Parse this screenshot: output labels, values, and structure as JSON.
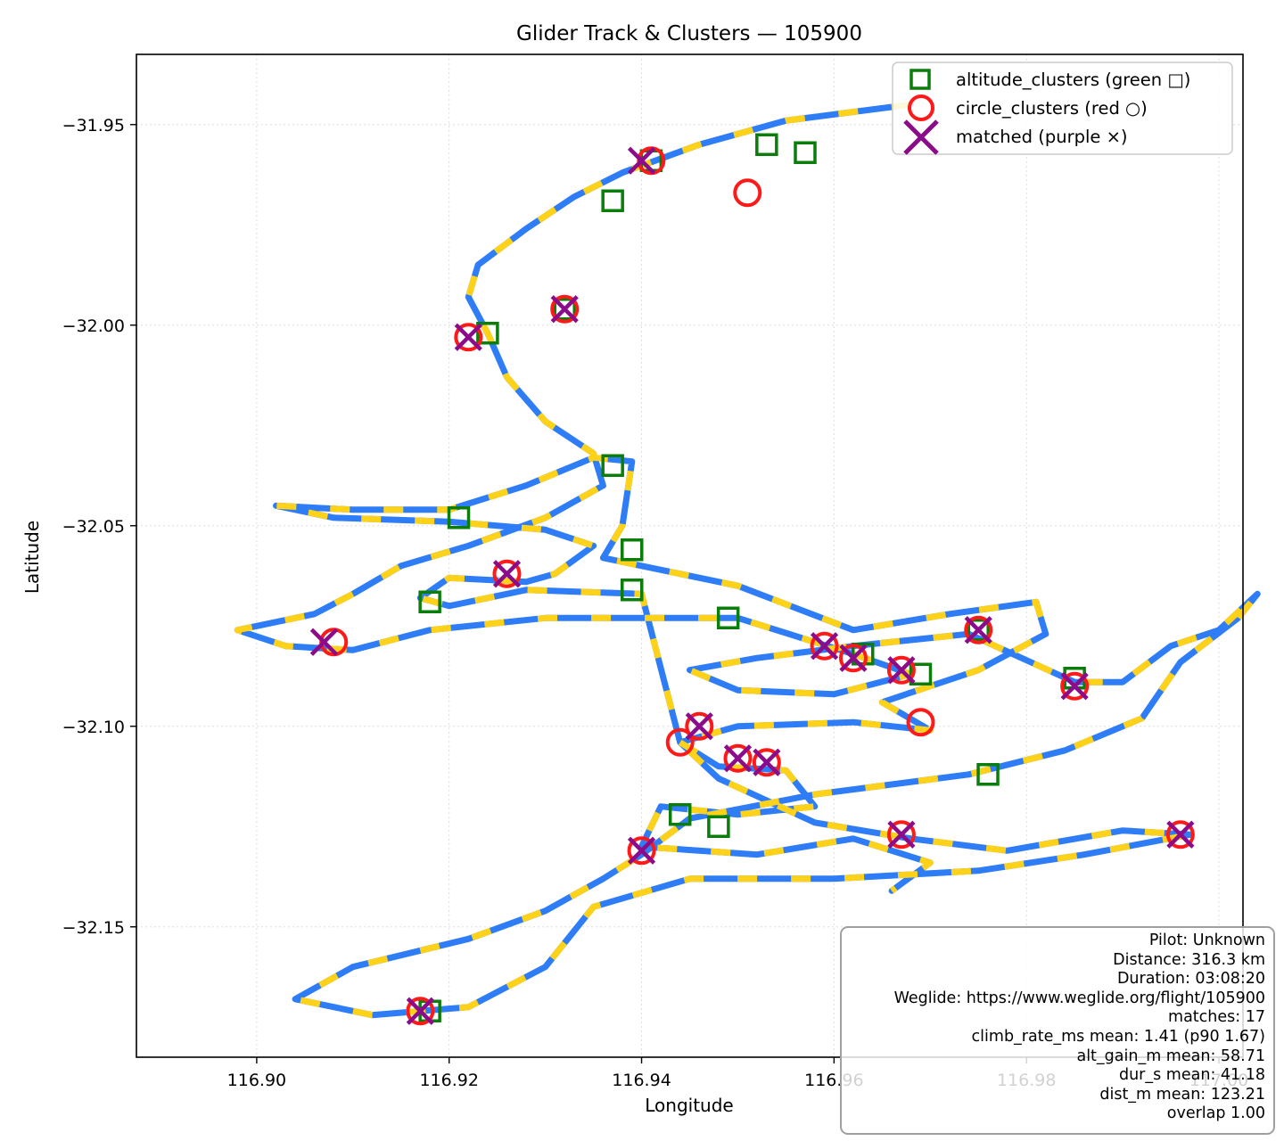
{
  "chart_data": {
    "type": "scatter",
    "title": "Glider Track & Clusters — 105900",
    "xlabel": "Longitude",
    "ylabel": "Latitude",
    "xlim": [
      116.8875,
      117.0025
    ],
    "ylim": [
      -32.1825,
      -31.9325
    ],
    "x_ticks": [
      116.9,
      116.92,
      116.94,
      116.96,
      116.98,
      117.0
    ],
    "x_tick_labels": [
      "116.90",
      "116.92",
      "116.94",
      "116.96",
      "116.98",
      "117.00"
    ],
    "y_ticks": [
      -31.95,
      -32.0,
      -32.05,
      -32.1,
      -32.15
    ],
    "y_tick_labels": [
      "−31.95",
      "−32.00",
      "−32.05",
      "−32.10",
      "−32.15"
    ],
    "grid": true,
    "legend_position": "upper-right",
    "track": {
      "color_cruise": "#2f7df6",
      "color_climb": "#ffd21a",
      "points": [
        [
          116.968,
          -31.945
        ],
        [
          116.955,
          -31.949
        ],
        [
          116.946,
          -31.955
        ],
        [
          116.938,
          -31.962
        ],
        [
          116.933,
          -31.968
        ],
        [
          116.928,
          -31.976
        ],
        [
          116.923,
          -31.985
        ],
        [
          116.922,
          -31.993
        ],
        [
          116.924,
          -32.002
        ],
        [
          116.926,
          -32.013
        ],
        [
          116.93,
          -32.024
        ],
        [
          116.935,
          -32.032
        ],
        [
          116.936,
          -32.04
        ],
        [
          116.93,
          -32.048
        ],
        [
          116.922,
          -32.055
        ],
        [
          116.915,
          -32.06
        ],
        [
          116.91,
          -32.067
        ],
        [
          116.906,
          -32.072
        ],
        [
          116.898,
          -32.076
        ],
        [
          116.903,
          -32.08
        ],
        [
          116.91,
          -32.081
        ],
        [
          116.918,
          -32.076
        ],
        [
          116.93,
          -32.073
        ],
        [
          116.95,
          -32.073
        ],
        [
          116.962,
          -32.082
        ],
        [
          116.968,
          -32.087
        ],
        [
          116.96,
          -32.092
        ],
        [
          116.95,
          -32.091
        ],
        [
          116.945,
          -32.086
        ],
        [
          116.952,
          -32.083
        ],
        [
          116.962,
          -32.08
        ],
        [
          116.974,
          -32.077
        ],
        [
          116.985,
          -32.089
        ],
        [
          116.99,
          -32.089
        ],
        [
          116.995,
          -32.08
        ],
        [
          117.0,
          -32.076
        ],
        [
          117.004,
          -32.067
        ],
        [
          117.002,
          -32.073
        ],
        [
          116.996,
          -32.084
        ],
        [
          116.992,
          -32.098
        ],
        [
          116.984,
          -32.106
        ],
        [
          116.974,
          -32.112
        ],
        [
          116.958,
          -32.117
        ],
        [
          116.945,
          -32.123
        ],
        [
          116.94,
          -32.132
        ],
        [
          116.936,
          -32.138
        ],
        [
          116.93,
          -32.146
        ],
        [
          116.922,
          -32.153
        ],
        [
          116.91,
          -32.16
        ],
        [
          116.904,
          -32.168
        ],
        [
          116.912,
          -32.172
        ],
        [
          116.922,
          -32.17
        ],
        [
          116.93,
          -32.16
        ],
        [
          116.935,
          -32.145
        ],
        [
          116.945,
          -32.138
        ],
        [
          116.96,
          -32.138
        ],
        [
          116.975,
          -32.136
        ],
        [
          116.986,
          -32.132
        ],
        [
          116.997,
          -32.127
        ],
        [
          116.99,
          -32.126
        ],
        [
          116.978,
          -32.131
        ],
        [
          116.968,
          -32.128
        ],
        [
          116.958,
          -32.124
        ],
        [
          116.948,
          -32.113
        ],
        [
          116.944,
          -32.104
        ],
        [
          116.95,
          -32.1
        ],
        [
          116.962,
          -32.099
        ],
        [
          116.97,
          -32.101
        ],
        [
          116.965,
          -32.094
        ],
        [
          116.975,
          -32.086
        ],
        [
          116.982,
          -32.077
        ],
        [
          116.981,
          -32.069
        ],
        [
          116.972,
          -32.072
        ],
        [
          116.962,
          -32.076
        ],
        [
          116.95,
          -32.065
        ],
        [
          116.94,
          -32.06
        ],
        [
          116.936,
          -32.058
        ],
        [
          116.938,
          -32.05
        ],
        [
          116.939,
          -32.034
        ],
        [
          116.935,
          -32.033
        ],
        [
          116.928,
          -32.04
        ],
        [
          116.92,
          -32.046
        ],
        [
          116.91,
          -32.046
        ],
        [
          116.902,
          -32.045
        ],
        [
          116.908,
          -32.048
        ],
        [
          116.92,
          -32.049
        ],
        [
          116.93,
          -32.051
        ],
        [
          116.935,
          -32.055
        ],
        [
          116.931,
          -32.062
        ],
        [
          116.928,
          -32.064
        ],
        [
          116.92,
          -32.063
        ],
        [
          116.917,
          -32.068
        ],
        [
          116.92,
          -32.07
        ],
        [
          116.928,
          -32.066
        ],
        [
          116.94,
          -32.067
        ],
        [
          116.944,
          -32.104
        ],
        [
          116.948,
          -32.11
        ],
        [
          116.955,
          -32.111
        ],
        [
          116.958,
          -32.12
        ],
        [
          116.95,
          -32.122
        ],
        [
          116.942,
          -32.12
        ],
        [
          116.94,
          -32.13
        ],
        [
          116.952,
          -32.132
        ],
        [
          116.962,
          -32.128
        ],
        [
          116.97,
          -32.134
        ],
        [
          116.966,
          -32.141
        ]
      ]
    },
    "series": [
      {
        "name": "altitude_clusters (green □)",
        "marker": "square",
        "color": "#0a7d0a",
        "x": [
          116.941,
          116.953,
          116.957,
          116.937,
          116.932,
          116.924,
          116.937,
          116.939,
          116.921,
          116.939,
          116.918,
          116.949,
          116.963,
          116.969,
          116.975,
          116.985,
          116.976,
          116.944,
          116.948,
          116.918
        ],
        "y": [
          -31.959,
          -31.955,
          -31.957,
          -31.969,
          -31.996,
          -32.002,
          -32.035,
          -32.056,
          -32.048,
          -32.066,
          -32.069,
          -32.073,
          -32.082,
          -32.087,
          -32.076,
          -32.088,
          -32.112,
          -32.122,
          -32.125,
          -32.171
        ]
      },
      {
        "name": "circle_clusters (red ○)",
        "marker": "circle",
        "color": "#ff1a1a",
        "x": [
          116.941,
          116.951,
          116.932,
          116.922,
          116.926,
          116.908,
          116.959,
          116.962,
          116.967,
          116.975,
          116.985,
          116.946,
          116.944,
          116.95,
          116.953,
          116.969,
          116.94,
          116.967,
          116.996,
          116.917
        ],
        "y": [
          -31.959,
          -31.967,
          -31.996,
          -32.003,
          -32.062,
          -32.079,
          -32.08,
          -32.083,
          -32.086,
          -32.076,
          -32.09,
          -32.1,
          -32.104,
          -32.108,
          -32.109,
          -32.099,
          -32.131,
          -32.127,
          -32.127,
          -32.171
        ]
      },
      {
        "name": "matched (purple ×)",
        "marker": "x",
        "color": "#8a0c8a",
        "x": [
          116.94,
          116.932,
          116.922,
          116.926,
          116.907,
          116.959,
          116.962,
          116.967,
          116.975,
          116.985,
          116.946,
          116.95,
          116.953,
          116.94,
          116.967,
          116.996,
          116.917
        ],
        "y": [
          -31.959,
          -31.996,
          -32.003,
          -32.062,
          -32.079,
          -32.08,
          -32.083,
          -32.086,
          -32.076,
          -32.09,
          -32.1,
          -32.108,
          -32.109,
          -32.131,
          -32.127,
          -32.127,
          -32.171
        ]
      }
    ],
    "stats_box": {
      "position": "lower-right",
      "lines": [
        "Pilot: Unknown",
        "Distance: 316.3 km",
        "Duration: 03:08:20",
        "Weglide: https://www.weglide.org/flight/105900",
        "matches: 17",
        "climb_rate_ms mean: 1.41 (p90 1.67)",
        "alt_gain_m mean: 58.71",
        "dur_s mean: 41.18",
        "dist_m mean: 123.21",
        "overlap 1.00"
      ]
    }
  }
}
